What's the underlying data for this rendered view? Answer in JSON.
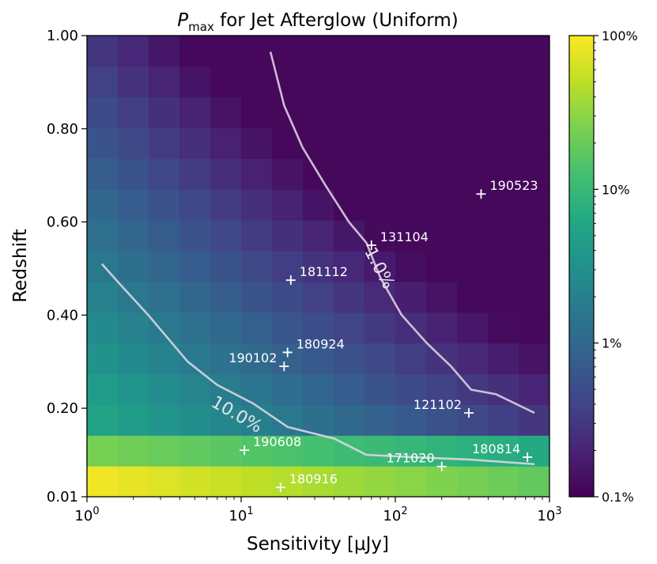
{
  "chart_data": {
    "type": "heatmap",
    "title_main": "P",
    "title_sub": "max",
    "title_rest": " for Jet Afterglow (Uniform)",
    "xlabel": "Sensitivity [μJy]",
    "ylabel": "Redshift",
    "x_scale": "log",
    "xlim": [
      1,
      1000
    ],
    "ylim": [
      0.01,
      1.0
    ],
    "x_ticks": [
      {
        "value": 1,
        "base": "10",
        "exp": "0"
      },
      {
        "value": 10,
        "base": "10",
        "exp": "1"
      },
      {
        "value": 100,
        "base": "10",
        "exp": "2"
      },
      {
        "value": 1000,
        "base": "10",
        "exp": "3"
      }
    ],
    "y_ticks": [
      {
        "value": 0.01,
        "label": "0.01"
      },
      {
        "value": 0.2,
        "label": "0.20"
      },
      {
        "value": 0.4,
        "label": "0.40"
      },
      {
        "value": 0.6,
        "label": "0.60"
      },
      {
        "value": 0.8,
        "label": "0.80"
      },
      {
        "value": 1.0,
        "label": "1.00"
      }
    ],
    "colorbar": {
      "scale": "log",
      "range": [
        0.1,
        100
      ],
      "ticks": [
        {
          "value": 0.1,
          "label": "0.1%"
        },
        {
          "value": 1,
          "label": "1%"
        },
        {
          "value": 10,
          "label": "10%"
        },
        {
          "value": 100,
          "label": "100%"
        }
      ]
    },
    "contours": [
      {
        "level": 10,
        "label": "10.0%",
        "points": [
          [
            1.25,
            0.51
          ],
          [
            1.6,
            0.47
          ],
          [
            2.5,
            0.4
          ],
          [
            4.5,
            0.3
          ],
          [
            7,
            0.25
          ],
          [
            12,
            0.21
          ],
          [
            20,
            0.16
          ],
          [
            40,
            0.135
          ],
          [
            65,
            0.1
          ],
          [
            130,
            0.095
          ],
          [
            300,
            0.09
          ],
          [
            800,
            0.08
          ]
        ]
      },
      {
        "level": 1,
        "label": "1.0%",
        "points": [
          [
            15.5,
            0.965
          ],
          [
            19,
            0.85
          ],
          [
            25,
            0.76
          ],
          [
            35,
            0.68
          ],
          [
            50,
            0.6
          ],
          [
            65,
            0.555
          ],
          [
            80,
            0.48
          ],
          [
            110,
            0.4
          ],
          [
            160,
            0.34
          ],
          [
            230,
            0.29
          ],
          [
            310,
            0.24
          ],
          [
            450,
            0.23
          ],
          [
            800,
            0.19
          ]
        ]
      }
    ],
    "events": [
      {
        "name": "190523",
        "x": 360,
        "y": 0.66
      },
      {
        "name": "131104",
        "x": 70,
        "y": 0.55
      },
      {
        "name": "181112",
        "x": 21,
        "y": 0.475
      },
      {
        "name": "180924",
        "x": 20,
        "y": 0.32
      },
      {
        "name": "190102",
        "x": 19,
        "y": 0.29
      },
      {
        "name": "121102",
        "x": 300,
        "y": 0.19
      },
      {
        "name": "180814",
        "x": 720,
        "y": 0.095
      },
      {
        "name": "190608",
        "x": 10.5,
        "y": 0.11
      },
      {
        "name": "171020",
        "x": 200,
        "y": 0.075
      },
      {
        "name": "180916",
        "x": 18,
        "y": 0.03
      }
    ]
  }
}
